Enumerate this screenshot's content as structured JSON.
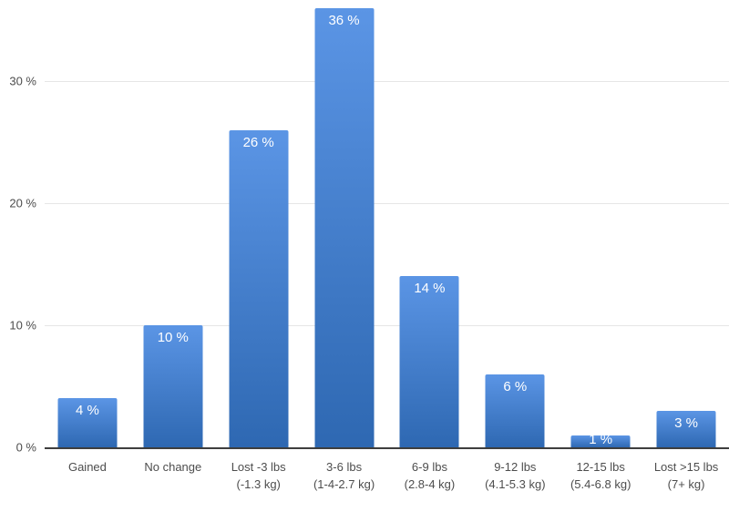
{
  "chart_data": {
    "type": "bar",
    "title": "",
    "xlabel": "",
    "ylabel": "",
    "categories": [
      [
        "Gained"
      ],
      [
        "No change"
      ],
      [
        "Lost -3 lbs",
        "(-1.3 kg)"
      ],
      [
        "3-6 lbs",
        "(1-4-2.7 kg)"
      ],
      [
        "6-9 lbs",
        "(2.8-4 kg)"
      ],
      [
        "9-12 lbs",
        "(4.1-5.3 kg)"
      ],
      [
        "12-15 lbs",
        "(5.4-6.8 kg)"
      ],
      [
        "Lost >15 lbs",
        "(7+ kg)"
      ]
    ],
    "values": [
      4,
      10,
      26,
      36,
      14,
      6,
      1,
      3
    ],
    "value_labels": [
      "4 %",
      "10 %",
      "26 %",
      "36 %",
      "14 %",
      "6 %",
      "1 %",
      "3 %"
    ],
    "y_ticks": [
      {
        "value": 0,
        "label": "0 %"
      },
      {
        "value": 10,
        "label": "10 %"
      },
      {
        "value": 20,
        "label": "20 %"
      },
      {
        "value": 30,
        "label": "30 %"
      }
    ],
    "ylim": [
      0,
      36.6
    ],
    "grid": true,
    "legend": "none",
    "colors": {
      "bar_gradient_top": "#5b95e5",
      "bar_gradient_bottom": "#2e68b2",
      "value_label": "#ffffff",
      "gridline": "#e6e6e6",
      "axis_line": "#3e3e3e",
      "tick_label": "#4d4d4d",
      "background": "#ffffff"
    }
  }
}
